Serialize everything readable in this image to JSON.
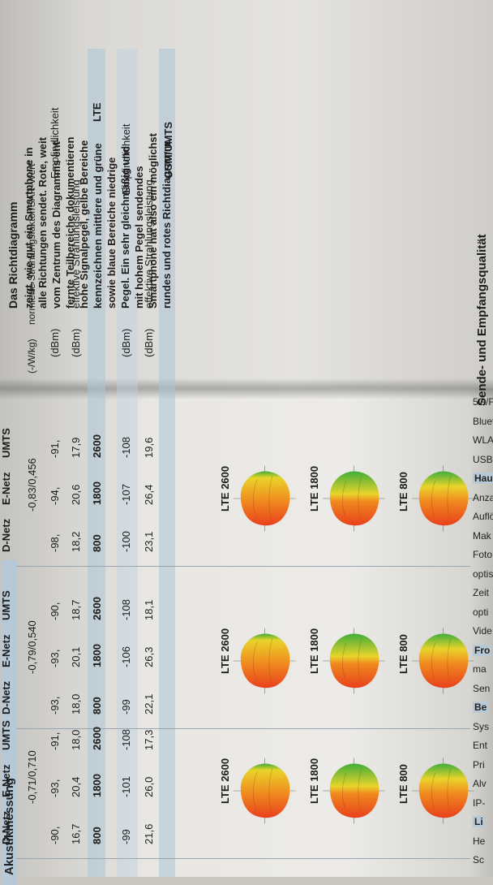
{
  "section": {
    "heading_top": "Sende- und Empfangsqualität",
    "acoustics": "Akustikmessung"
  },
  "info": {
    "heading": "Das Richtdiagramm",
    "lines": [
      "zeigt, wie gut ein Smartphone in",
      "alle Richtungen sendet. Rote, weit",
      "vom Zentrum des Diagramms ent-",
      "fernte Teilbereiche dokumentieren",
      "hohe Signalpegel, gelbe Bereiche",
      "kennzeichnen mittlere und grüne",
      "sowie blaue Bereiche niedrige",
      "Pegel. Ein sehr gleichmäßig und",
      "mit hohem Pegel sendendes",
      "Smartphone hat also ein möglichst",
      "rundes und rotes Richtdiagramm."
    ]
  },
  "rows": {
    "gsm": "GSM/UMTS",
    "gsm_power": "effektive Strahlungsleistung",
    "gsm_power_unit": "(dBm)",
    "gsm_sens": "Empfindlichkeit",
    "gsm_sens_unit": "(dBm)",
    "lte": "LTE",
    "lte_power": "effektive Strahlungsleistung",
    "lte_power_unit": "(dBm)",
    "lte_sens": "Empfindlichkeit",
    "lte_sens_unit": "(dBm)",
    "sar": "normierte Strahlungsfaktor/SAR-Wert¹",
    "sar_unit": "(-/W/kg)"
  },
  "phones": [
    {
      "diagrams": [
        "LTE 800",
        "LTE 1800",
        "LTE 2600"
      ],
      "gsm_head": [
        "D-Netz",
        "E-Netz",
        "UMTS"
      ],
      "gsm_power": [
        "23,1",
        "26,4",
        "19,6"
      ],
      "gsm_sens": [
        "-100",
        "-107",
        "-108"
      ],
      "lte_head": [
        "800",
        "1800",
        "2600"
      ],
      "lte_power": [
        "18,2",
        "20,6",
        "17,9"
      ],
      "lte_sens": [
        "-98,",
        "-94,",
        "-91,"
      ],
      "sar": "-0,83/0,456"
    },
    {
      "diagrams": [
        "LTE 800",
        "LTE 1800",
        "LTE 2600"
      ],
      "gsm_head": [
        "D-Netz",
        "E-Netz",
        "UMTS"
      ],
      "gsm_power": [
        "22,1",
        "26,3",
        "18,1"
      ],
      "gsm_sens": [
        "-99",
        "-106",
        "-108"
      ],
      "lte_head": [
        "800",
        "1800",
        "2600"
      ],
      "lte_power": [
        "18,0",
        "20,1",
        "18,7"
      ],
      "lte_sens": [
        "-93,",
        "-93,",
        "-90,"
      ],
      "sar": "-0,79/0,540"
    },
    {
      "diagrams": [
        "LTE 800",
        "LTE 1800",
        "LTE 2600"
      ],
      "gsm_head": [
        "D-Netz",
        "E-Netz",
        "UMTS"
      ],
      "gsm_power": [
        "21,6",
        "26,0",
        "17,3"
      ],
      "gsm_sens": [
        "-99",
        "-101",
        "-108"
      ],
      "lte_head": [
        "800",
        "1800",
        "2600"
      ],
      "lte_power": [
        "16,7",
        "20,4",
        "18,0"
      ],
      "lte_sens": [
        "-90,",
        "-93,",
        "-91,"
      ],
      "sar": "-0,71/0,710"
    }
  ],
  "side_column": [
    "5G/F",
    "Bluet",
    "WLA",
    "USB-",
    "Hau",
    "Anza",
    "Auflös",
    "Mak",
    "Foto",
    "optis",
    "Zeit",
    "opti",
    "Vide",
    "Fro",
    "ma",
    "Sen",
    "Be",
    "Sys",
    "Ent",
    "Pri",
    "Alv",
    "IP-",
    "Li",
    "He",
    "Sc"
  ],
  "colors": {
    "band": "#b7c8d6",
    "diagram_red": "#e8401c",
    "diagram_orange": "#f08a1e",
    "diagram_yellow": "#e8d42a",
    "diagram_green": "#3fae3a"
  }
}
